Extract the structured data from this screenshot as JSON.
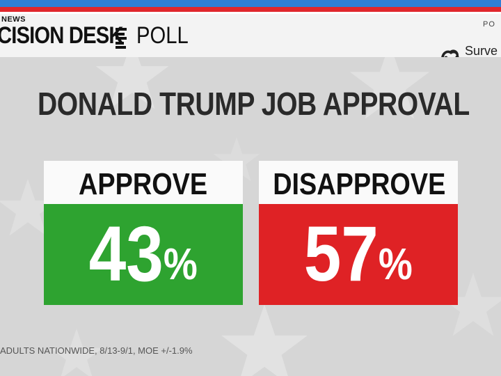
{
  "header": {
    "brand_news": "NEWS",
    "brand_main": "CISION DESK",
    "brand_poll": "POLL",
    "powered_by": "PO",
    "partner_name": "Surve"
  },
  "title": "DONALD TRUMP JOB APPROVAL",
  "results": {
    "approve": {
      "label": "APPROVE",
      "value": "43",
      "unit": "%",
      "color": "#2ea330"
    },
    "disapprove": {
      "label": "DISAPPROVE",
      "value": "57",
      "unit": "%",
      "color": "#df2225"
    }
  },
  "footnote": "ADULTS NATIONWIDE, 8/13-9/1, MOE +/-1.9%"
}
